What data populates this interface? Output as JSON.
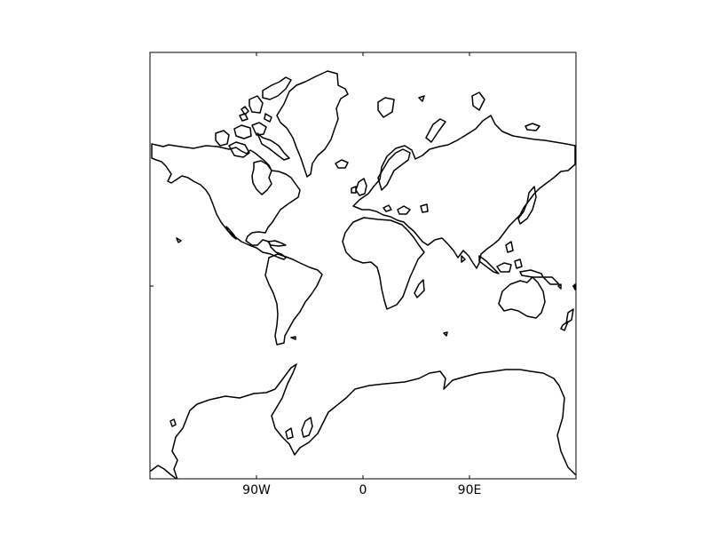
{
  "map": {
    "projection": "mercator",
    "background_color": "#ffffff",
    "coastline_color": "#000000",
    "x_ticks": [
      {
        "label": "90W",
        "lon": -90
      },
      {
        "label": "0",
        "lon": 0
      },
      {
        "label": "90E",
        "lon": 90
      }
    ],
    "y_ticks": []
  }
}
